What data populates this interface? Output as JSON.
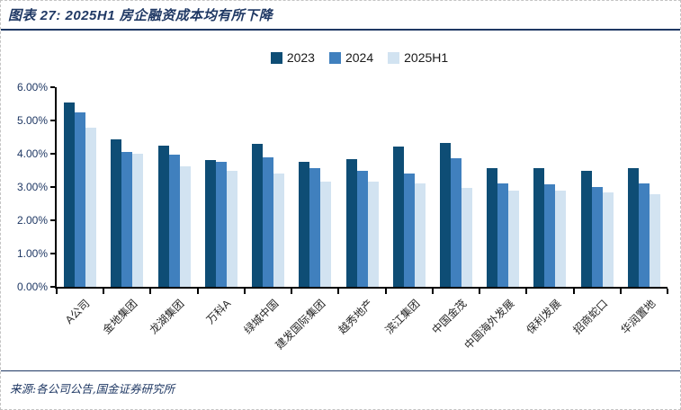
{
  "header": {
    "title": "图表 27: 2025H1 房企融资成本均有所下降"
  },
  "chart_data": {
    "type": "bar",
    "title": "2025H1 房企融资成本均有所下降",
    "categories": [
      "A公司",
      "金地集团",
      "龙湖集团",
      "万科A",
      "绿城中国",
      "建发国际集团",
      "越秀地产",
      "滨江集团",
      "中国金茂",
      "中国海外发展",
      "保利发展",
      "招商蛇口",
      "华润置地"
    ],
    "series": [
      {
        "name": "2023",
        "color": "#0e4d75",
        "values": [
          5.54,
          4.42,
          4.25,
          3.8,
          4.31,
          3.76,
          3.85,
          4.21,
          4.33,
          3.56,
          3.58,
          3.49,
          3.58
        ]
      },
      {
        "name": "2024",
        "color": "#4080be",
        "values": [
          5.24,
          4.06,
          3.98,
          3.77,
          3.9,
          3.56,
          3.49,
          3.4,
          3.87,
          3.1,
          3.08,
          3.0,
          3.1
        ]
      },
      {
        "name": "2025H1",
        "color": "#d2e3f1",
        "values": [
          4.79,
          4.0,
          3.62,
          3.48,
          3.4,
          3.16,
          3.16,
          3.1,
          2.97,
          2.89,
          2.88,
          2.83,
          2.79
        ]
      }
    ],
    "unit": "%",
    "xlabel": "",
    "ylabel": "",
    "ylim": [
      0,
      6
    ],
    "y_tick_labels": [
      "0.00%",
      "1.00%",
      "2.00%",
      "3.00%",
      "4.00%",
      "5.00%",
      "6.00%"
    ],
    "grid": false,
    "legend_position": "top-center"
  },
  "footer": {
    "source": "来源:各公司公告,国金证券研究所"
  },
  "colors": {
    "accent_navy": "#1f3864",
    "axis": "#000000",
    "bar_2023": "#0e4d75",
    "bar_2024": "#4080be",
    "bar_2025h1": "#d2e3f1"
  }
}
